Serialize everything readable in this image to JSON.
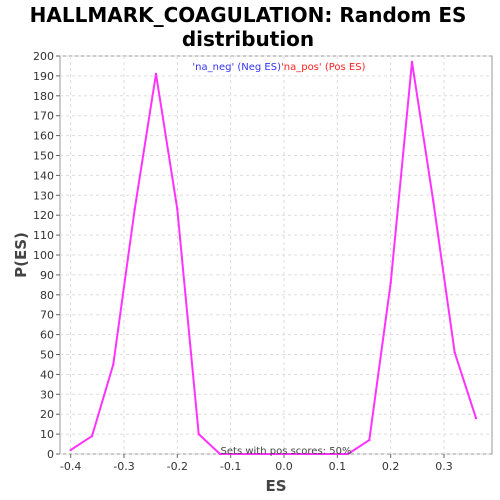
{
  "chart_data": {
    "type": "line",
    "title_line1": "HALLMARK_COAGULATION: Random ES",
    "title_line2": "distribution",
    "xlabel": "ES",
    "ylabel": "P(ES)",
    "xlim": [
      -0.42,
      0.39
    ],
    "ylim": [
      0,
      200
    ],
    "x_ticks": [
      -0.4,
      -0.3,
      -0.2,
      -0.1,
      0.0,
      0.1,
      0.2,
      0.3
    ],
    "x_tick_labels": [
      "-0.4",
      "-0.3",
      "-0.2",
      "-0.1",
      "0.0",
      "0.1",
      "0.2",
      "0.3"
    ],
    "y_ticks": [
      0,
      10,
      20,
      30,
      40,
      50,
      60,
      70,
      80,
      90,
      100,
      110,
      120,
      130,
      140,
      150,
      160,
      170,
      180,
      190,
      200
    ],
    "grid": true,
    "legend": [
      {
        "label": "'na_neg' (Neg ES)",
        "color": "#3333ff"
      },
      {
        "label": "'na_pos' (Pos ES)",
        "color": "#ff2222"
      }
    ],
    "legend_placement": "top-center",
    "annotation": "Sets with pos scores: 50%",
    "series": [
      {
        "name": "",
        "color": "#ff33ff",
        "points": [
          {
            "x": -0.4,
            "y": 2
          },
          {
            "x": -0.36,
            "y": 9
          },
          {
            "x": -0.32,
            "y": 45
          },
          {
            "x": -0.28,
            "y": 123
          },
          {
            "x": -0.24,
            "y": 191
          },
          {
            "x": -0.2,
            "y": 123
          },
          {
            "x": -0.16,
            "y": 10
          },
          {
            "x": -0.12,
            "y": 0
          },
          {
            "x": 0.12,
            "y": 0
          },
          {
            "x": 0.16,
            "y": 7
          },
          {
            "x": 0.2,
            "y": 86
          },
          {
            "x": 0.24,
            "y": 197
          },
          {
            "x": 0.28,
            "y": 127
          },
          {
            "x": 0.32,
            "y": 51
          },
          {
            "x": 0.36,
            "y": 18
          }
        ]
      }
    ]
  }
}
